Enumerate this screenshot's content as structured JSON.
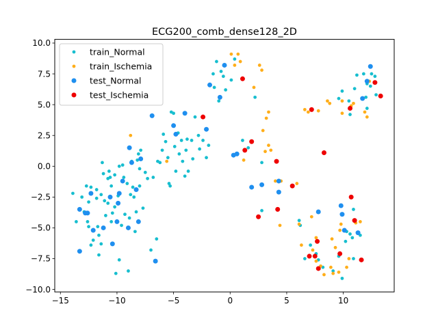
{
  "chart_data": {
    "type": "scatter",
    "title": "ECG200_comb_dense128_2D",
    "xlabel": "",
    "ylabel": "",
    "xlim": [
      -15.5,
      14.5
    ],
    "ylim": [
      -10.2,
      10.3
    ],
    "xticks": [
      -15,
      -10,
      -5,
      0,
      5,
      10
    ],
    "yticks": [
      -10.0,
      -7.5,
      -5.0,
      -2.5,
      0.0,
      2.5,
      5.0,
      7.5,
      10.0
    ],
    "xtick_labels": [
      "−15",
      "−10",
      "−5",
      "0",
      "5",
      "10"
    ],
    "ytick_labels": [
      "−10.0",
      "−7.5",
      "−5.0",
      "−2.5",
      "0.0",
      "2.5",
      "5.0",
      "7.5",
      "10.0"
    ],
    "grid": false,
    "legend_position": "top-left",
    "series": [
      {
        "name": "train_Normal",
        "color": "#17becf",
        "marker_size": "small",
        "points": [
          [
            -13.9,
            -2.2
          ],
          [
            -13.6,
            -4.5
          ],
          [
            -13.1,
            -2.5
          ],
          [
            -12.9,
            -3.7
          ],
          [
            -12.7,
            -1.6
          ],
          [
            -12.6,
            -4.5
          ],
          [
            -12.5,
            -4.9
          ],
          [
            -12.5,
            -2.9
          ],
          [
            -12.3,
            -6.4
          ],
          [
            -12.3,
            -1.7
          ],
          [
            -12.1,
            -6.0
          ],
          [
            -11.8,
            -2.6
          ],
          [
            -11.8,
            -1.9
          ],
          [
            -11.7,
            -4.9
          ],
          [
            -11.6,
            -5.6
          ],
          [
            -11.6,
            -7.2
          ],
          [
            -11.4,
            -2.3
          ],
          [
            -11.4,
            -6.3
          ],
          [
            -11.3,
            0.3
          ],
          [
            -11.2,
            -0.6
          ],
          [
            -11.1,
            -2.8
          ],
          [
            -11.0,
            -4.0
          ],
          [
            -10.8,
            -3.0
          ],
          [
            -10.8,
            -1.0
          ],
          [
            -10.7,
            -0.4
          ],
          [
            -10.6,
            -0.9
          ],
          [
            -10.5,
            -1.6
          ],
          [
            -10.5,
            -4.5
          ],
          [
            -10.4,
            -3.8
          ],
          [
            -10.2,
            -0.7
          ],
          [
            -10.2,
            -3.3
          ],
          [
            -10.1,
            -8.7
          ],
          [
            -9.9,
            -2.4
          ],
          [
            -9.8,
            -7.6
          ],
          [
            -9.8,
            0.0
          ],
          [
            -9.6,
            -4.8
          ],
          [
            -9.5,
            0.1
          ],
          [
            -9.4,
            -0.9
          ],
          [
            -9.3,
            -3.9
          ],
          [
            -9.1,
            -1.4
          ],
          [
            -9.0,
            -8.5
          ],
          [
            -8.9,
            -4.2
          ],
          [
            -8.8,
            -2.3
          ],
          [
            -8.7,
            0.4
          ],
          [
            -8.6,
            -1.7
          ],
          [
            -8.5,
            -2.5
          ],
          [
            -8.4,
            -5.3
          ],
          [
            -8.3,
            -3.7
          ],
          [
            -8.2,
            0.5
          ],
          [
            -8.1,
            1.0
          ],
          [
            -8.0,
            -1.6
          ],
          [
            -8.0,
            -0.2
          ],
          [
            -7.9,
            1.3
          ],
          [
            -7.7,
            -3.4
          ],
          [
            -7.5,
            -0.5
          ],
          [
            -7.3,
            -1.0
          ],
          [
            -7.0,
            -6.8
          ],
          [
            -6.8,
            -0.9
          ],
          [
            -6.5,
            -5.9
          ],
          [
            -6.4,
            0.4
          ],
          [
            -6.2,
            0.3
          ],
          [
            -6.0,
            1.3
          ],
          [
            -5.9,
            2.6
          ],
          [
            -5.7,
            2.0
          ],
          [
            -5.5,
            0.7
          ],
          [
            -5.4,
            -1.4
          ],
          [
            -5.3,
            -1.6
          ],
          [
            -5.2,
            4.4
          ],
          [
            -5.0,
            4.3
          ],
          [
            -4.9,
            1.6
          ],
          [
            -4.8,
            -0.4
          ],
          [
            -4.6,
            2.7
          ],
          [
            -4.5,
            1.0
          ],
          [
            -4.3,
            2.1
          ],
          [
            -4.2,
            0.4
          ],
          [
            -4.0,
            -0.8
          ],
          [
            -3.9,
            1.3
          ],
          [
            -3.8,
            2.2
          ],
          [
            -3.7,
            -0.4
          ],
          [
            -3.4,
            2.1
          ],
          [
            -3.3,
            0.6
          ],
          [
            -3.1,
            4.0
          ],
          [
            -2.8,
            2.5
          ],
          [
            -2.7,
            1.4
          ],
          [
            -2.4,
            2.1
          ],
          [
            -2.1,
            0.7
          ],
          [
            -1.9,
            1.7
          ],
          [
            -1.5,
            7.5
          ],
          [
            -1.4,
            6.4
          ],
          [
            -1.2,
            8.5
          ],
          [
            -1.0,
            5.3
          ],
          [
            -0.8,
            7.7
          ],
          [
            -0.6,
            7.3
          ],
          [
            -0.4,
            6.2
          ],
          [
            0.1,
            7.0
          ],
          [
            0.4,
            8.7
          ],
          [
            1.1,
            2.1
          ],
          [
            1.6,
            1.5
          ],
          [
            2.2,
            5.6
          ],
          [
            2.8,
            0.3
          ],
          [
            2.8,
            -3.6
          ],
          [
            6.1,
            -4.4
          ],
          [
            6.2,
            -4.8
          ],
          [
            6.6,
            -7.5
          ],
          [
            7.1,
            -6.4
          ],
          [
            7.6,
            -7.1
          ],
          [
            7.8,
            -7.6
          ],
          [
            8.2,
            -8.2
          ],
          [
            9.1,
            -8.5
          ],
          [
            9.6,
            -7.3
          ],
          [
            9.9,
            -9.1
          ],
          [
            10.2,
            -6.1
          ],
          [
            10.3,
            -5.3
          ],
          [
            10.5,
            5.3
          ],
          [
            10.6,
            -5.5
          ],
          [
            10.8,
            -5.8
          ],
          [
            10.9,
            -7.5
          ],
          [
            11.0,
            6.3
          ],
          [
            11.2,
            7.4
          ],
          [
            11.5,
            -5.6
          ],
          [
            11.8,
            7.5
          ],
          [
            12.0,
            5.6
          ],
          [
            12.1,
            6.7
          ],
          [
            12.1,
            4.7
          ],
          [
            12.4,
            6.5
          ],
          [
            12.5,
            7.5
          ],
          [
            12.8,
            7.3
          ],
          [
            12.9,
            5.8
          ],
          [
            9.6,
            5.5
          ],
          [
            10.6,
            4.2
          ],
          [
            9.9,
            6.1
          ],
          [
            10.9,
            -3.5
          ]
        ]
      },
      {
        "name": "train_Ischemia",
        "color": "#ffae1a",
        "marker_size": "small",
        "points": [
          [
            -8.8,
            2.5
          ],
          [
            -5.6,
            0.4
          ],
          [
            0.1,
            9.1
          ],
          [
            0.4,
            8.2
          ],
          [
            0.7,
            9.1
          ],
          [
            0.9,
            8.5
          ],
          [
            1.2,
            0.5
          ],
          [
            2.1,
            6.4
          ],
          [
            2.6,
            8.2
          ],
          [
            2.8,
            7.8
          ],
          [
            2.9,
            2.9
          ],
          [
            3.1,
            1.2
          ],
          [
            3.2,
            3.9
          ],
          [
            3.4,
            4.4
          ],
          [
            3.4,
            1.7
          ],
          [
            3.6,
            1.3
          ],
          [
            4.0,
            -1.2
          ],
          [
            4.4,
            -4.8
          ],
          [
            4.5,
            -1.2
          ],
          [
            5.5,
            -1.6
          ],
          [
            5.9,
            -1.4
          ],
          [
            6.1,
            -4.7
          ],
          [
            6.3,
            -6.4
          ],
          [
            6.6,
            4.6
          ],
          [
            6.9,
            4.4
          ],
          [
            7.2,
            -4.1
          ],
          [
            7.3,
            -6.8
          ],
          [
            7.6,
            -7.7
          ],
          [
            7.6,
            -5.8
          ],
          [
            7.8,
            4.5
          ],
          [
            8.0,
            -8.1
          ],
          [
            8.3,
            -8.8
          ],
          [
            8.6,
            5.3
          ],
          [
            8.8,
            5.1
          ],
          [
            8.9,
            -8.2
          ],
          [
            9.0,
            -5.9
          ],
          [
            9.1,
            -8.7
          ],
          [
            9.3,
            -6.6
          ],
          [
            9.6,
            -8.6
          ],
          [
            9.7,
            -5.2
          ],
          [
            9.8,
            -4.7
          ],
          [
            9.9,
            4.3
          ],
          [
            9.9,
            5.3
          ],
          [
            10.3,
            -8.2
          ],
          [
            10.5,
            -7.5
          ],
          [
            10.7,
            4.9
          ],
          [
            10.9,
            5.1
          ],
          [
            11.1,
            -4.6
          ],
          [
            11.5,
            -4.5
          ],
          [
            11.9,
            4.4
          ],
          [
            12.1,
            4.0
          ],
          [
            12.3,
            6.9
          ]
        ]
      },
      {
        "name": "test_Normal",
        "color": "#1f8fef",
        "marker_size": "large",
        "points": [
          [
            -13.3,
            -3.5
          ],
          [
            -13.3,
            -6.9
          ],
          [
            -12.8,
            -3.8
          ],
          [
            -12.6,
            -3.8
          ],
          [
            -12.3,
            -2.2
          ],
          [
            -12.1,
            -5.2
          ],
          [
            -11.2,
            -5.0
          ],
          [
            -10.6,
            -2.5
          ],
          [
            -10.4,
            -6.3
          ],
          [
            -10.0,
            -4.5
          ],
          [
            -9.9,
            -3.0
          ],
          [
            -9.8,
            -2.2
          ],
          [
            -9.5,
            -1.2
          ],
          [
            -9.0,
            -5.0
          ],
          [
            -8.9,
            1.5
          ],
          [
            -8.7,
            0.3
          ],
          [
            -8.3,
            -1.9
          ],
          [
            -8.1,
            -4.5
          ],
          [
            -7.9,
            0.6
          ],
          [
            -6.9,
            4.1
          ],
          [
            -6.6,
            -7.7
          ],
          [
            -5.0,
            3.3
          ],
          [
            -4.8,
            2.6
          ],
          [
            -4.0,
            4.3
          ],
          [
            -2.1,
            3.0
          ],
          [
            -1.8,
            6.6
          ],
          [
            -0.9,
            5.6
          ],
          [
            -0.5,
            8.2
          ],
          [
            0.3,
            0.9
          ],
          [
            0.6,
            1.0
          ],
          [
            1.9,
            -1.7
          ],
          [
            2.8,
            -1.5
          ],
          [
            4.3,
            -1.2
          ],
          [
            4.3,
            -2.1
          ],
          [
            7.8,
            -3.7
          ],
          [
            9.8,
            -3.2
          ],
          [
            9.9,
            -3.9
          ],
          [
            10.1,
            -5.2
          ],
          [
            11.3,
            -5.4
          ],
          [
            11.7,
            5.5
          ],
          [
            12.1,
            6.9
          ],
          [
            12.4,
            8.1
          ]
        ]
      },
      {
        "name": "test_Ischemia",
        "color": "#ee0000",
        "marker_size": "large",
        "points": [
          [
            -2.4,
            4.0
          ],
          [
            1.1,
            7.1
          ],
          [
            1.3,
            1.3
          ],
          [
            1.9,
            2.0
          ],
          [
            2.5,
            -4.1
          ],
          [
            4.1,
            0.4
          ],
          [
            4.2,
            -3.5
          ],
          [
            5.5,
            -1.6
          ],
          [
            7.0,
            -7.3
          ],
          [
            7.2,
            4.6
          ],
          [
            7.5,
            -7.3
          ],
          [
            7.7,
            -6.1
          ],
          [
            7.8,
            -8.3
          ],
          [
            8.3,
            1.1
          ],
          [
            9.7,
            -7.1
          ],
          [
            10.6,
            4.7
          ],
          [
            10.7,
            -2.5
          ],
          [
            11.0,
            -4.4
          ],
          [
            11.6,
            -7.6
          ],
          [
            12.8,
            6.8
          ],
          [
            13.3,
            5.7
          ]
        ]
      }
    ]
  }
}
